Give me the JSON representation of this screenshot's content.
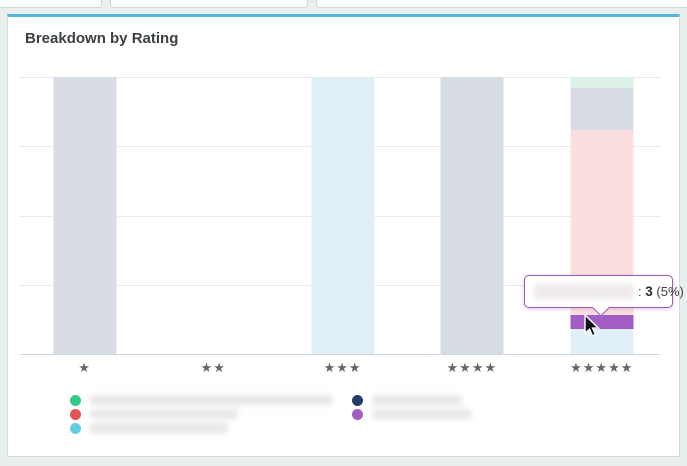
{
  "card": {
    "title": "Breakdown by Rating",
    "accent_color": "#54b7e0"
  },
  "chart_data": {
    "type": "bar",
    "stacked": true,
    "title": "Breakdown by Rating",
    "unit": "percent of rating column",
    "ylim": [
      0,
      100
    ],
    "y_ticks_visible": false,
    "grid": true,
    "legend_position": "bottom",
    "categories": [
      "1 star",
      "2 stars",
      "3 stars",
      "4 stars",
      "5 stars"
    ],
    "category_star_counts": [
      1,
      2,
      3,
      4,
      5
    ],
    "x_centers_pct": [
      10.1,
      30.2,
      50.4,
      70.6,
      90.9
    ],
    "series": [
      {
        "name": "(redacted)",
        "redacted": true,
        "legend_color": "#62cde3",
        "fill": "#e0eff8",
        "values": [
          0,
          0,
          100,
          0,
          9
        ]
      },
      {
        "name": "(redacted)",
        "redacted": true,
        "legend_color": "#a35ec5",
        "fill": "#a35ec5",
        "highlighted": true,
        "values": [
          0,
          0,
          0,
          0,
          5
        ]
      },
      {
        "name": "(redacted)",
        "redacted": true,
        "legend_color": "#e25555",
        "fill": "#fbdee0",
        "values": [
          0,
          0,
          0,
          0,
          67
        ]
      },
      {
        "name": "(redacted)",
        "redacted": true,
        "legend_color": "#263c66",
        "fill": "#d8dce4",
        "values": [
          100,
          0,
          0,
          100,
          15
        ]
      },
      {
        "name": "(redacted)",
        "redacted": true,
        "legend_color": "#31c98a",
        "fill": "#ddf2e6",
        "values": [
          0,
          0,
          0,
          0,
          4
        ]
      }
    ]
  },
  "tooltip": {
    "label_redacted": true,
    "separator": ":",
    "value": "3",
    "percent": "(5%)"
  },
  "legend": {
    "columns": [
      {
        "items": [
          {
            "color": "#31c98a",
            "redacted": true,
            "blur_width": 243
          },
          {
            "color": "#e25555",
            "redacted": true,
            "blur_width": 148
          },
          {
            "color": "#62cde3",
            "redacted": true,
            "blur_width": 138
          }
        ]
      },
      {
        "items": [
          {
            "color": "#263c66",
            "redacted": true,
            "blur_width": 90
          },
          {
            "color": "#a35ec5",
            "redacted": true,
            "blur_width": 100
          }
        ]
      }
    ]
  }
}
